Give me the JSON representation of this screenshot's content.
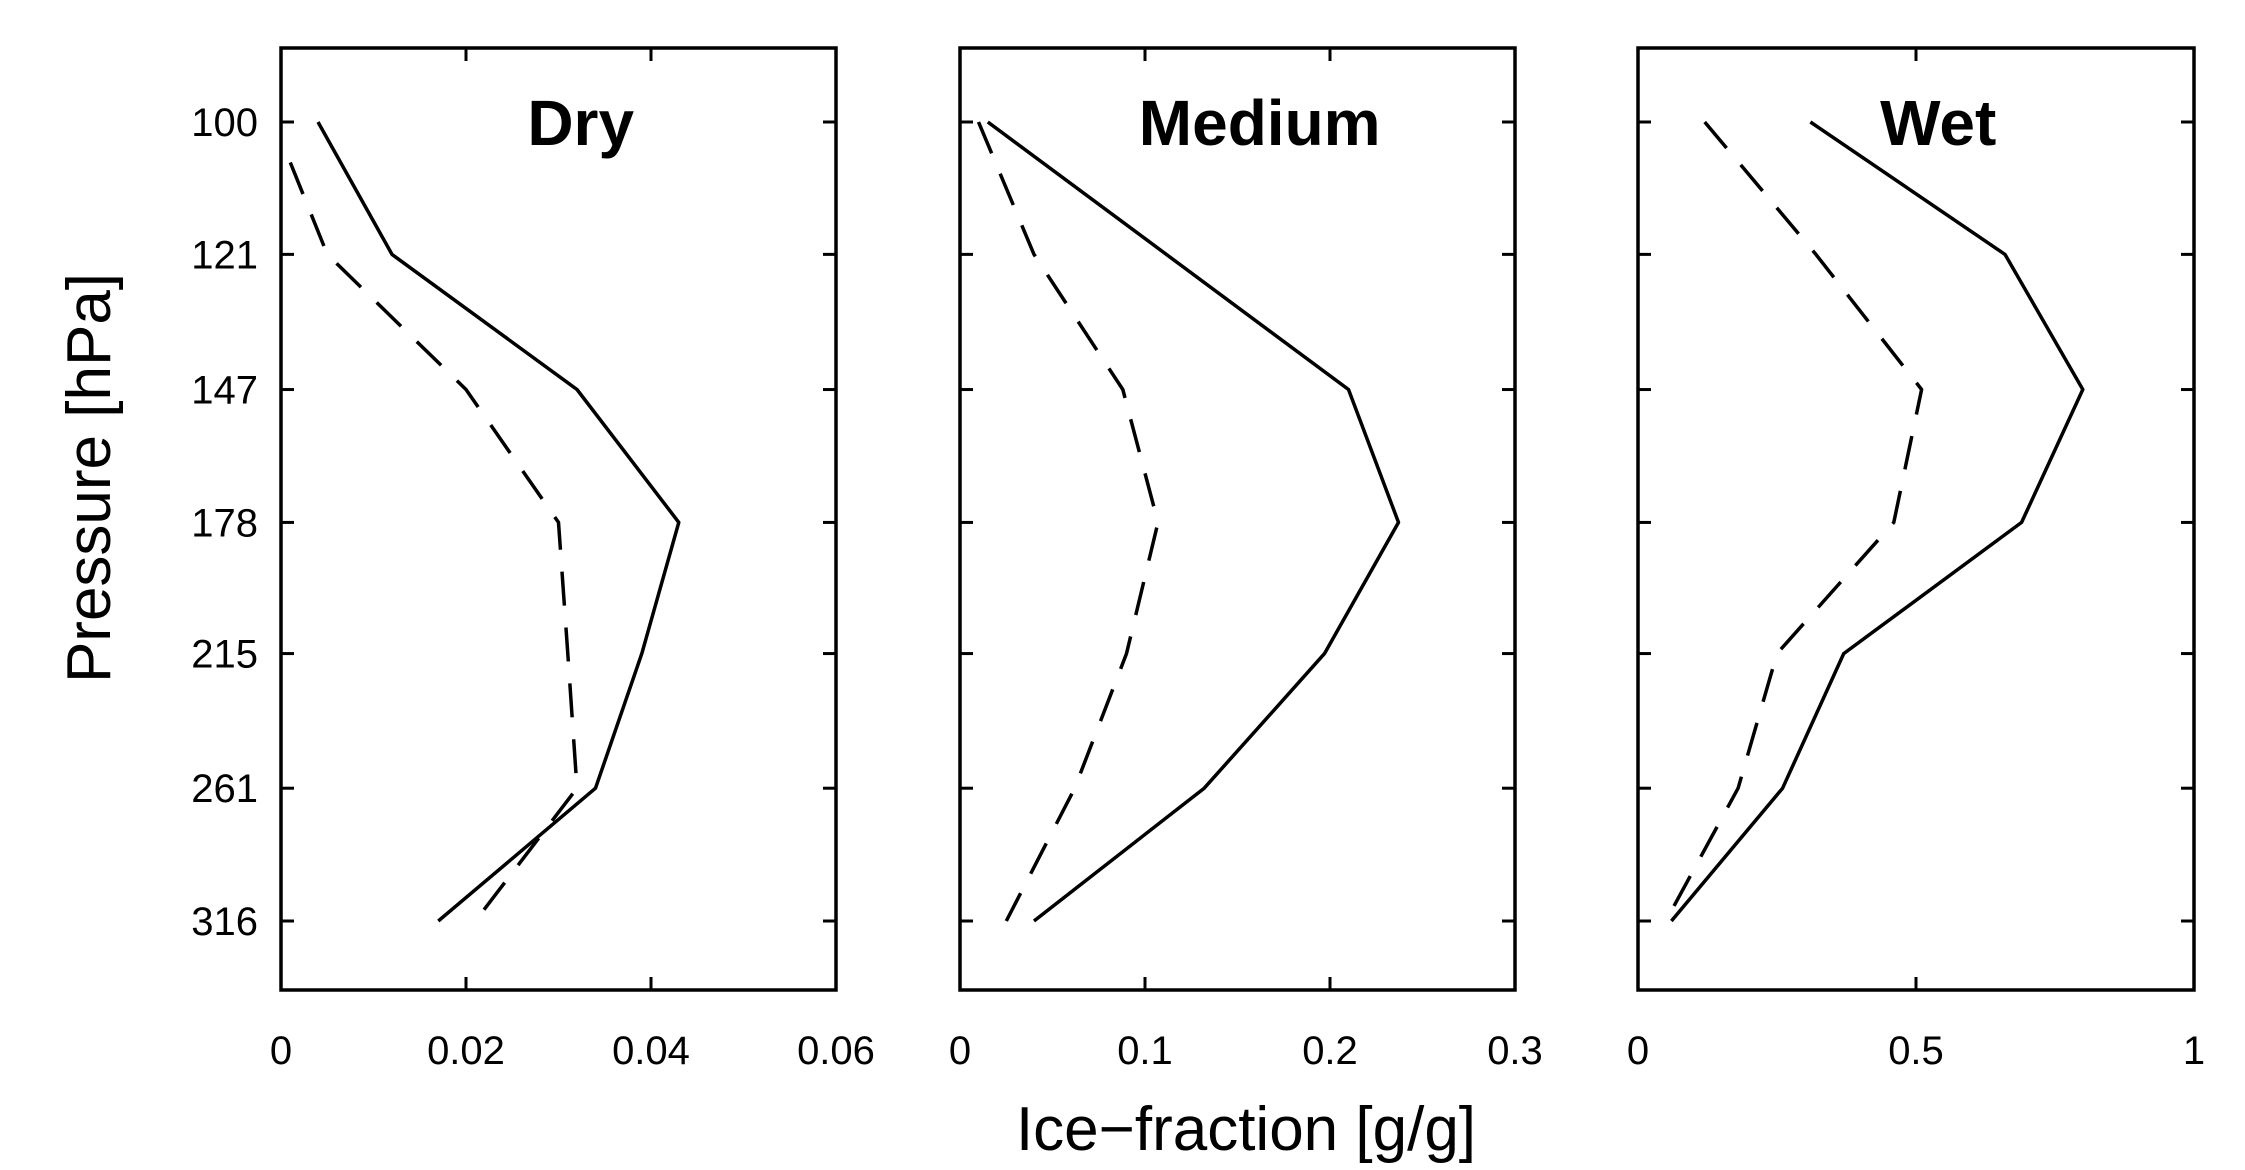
{
  "chart_data": {
    "type": "line",
    "ylabel": "Pressure [hPa]",
    "xlabel": "Ice−fraction [g/g]",
    "y_scale": "log",
    "y_direction": "down",
    "yticks": [
      100,
      121,
      147,
      178,
      215,
      261,
      316
    ],
    "ytick_labels": [
      "100",
      "121",
      "147",
      "178",
      "215",
      "261",
      "316"
    ],
    "ylim": [
      91,
      347
    ],
    "grid": false,
    "legend": "none",
    "panels": [
      {
        "title": "Dry",
        "xlim": [
          0,
          0.06
        ],
        "xticks": [
          0,
          0.02,
          0.04,
          0.06
        ],
        "xtick_labels": [
          "0",
          "0.02",
          "0.04",
          "0.06"
        ],
        "series": [
          {
            "style": "solid",
            "pressure": [
              100,
              121,
              147,
              178,
              215,
              261,
              316
            ],
            "values": [
              0.004,
              0.012,
              0.032,
              0.043,
              0.039,
              0.034,
              0.017
            ]
          },
          {
            "style": "dashed",
            "pressure": [
              106,
              121,
              147,
              178,
              215,
              261,
              316
            ],
            "values": [
              0.001,
              0.005,
              0.02,
              0.03,
              0.031,
              0.032,
              0.021
            ]
          }
        ]
      },
      {
        "title": "Medium",
        "xlim": [
          0,
          0.3
        ],
        "xticks": [
          0,
          0.1,
          0.2,
          0.3
        ],
        "xtick_labels": [
          "0",
          "0.1",
          "0.2",
          "0.3"
        ],
        "series": [
          {
            "style": "solid",
            "pressure": [
              100,
              147,
              178,
              215,
              261,
              316
            ],
            "values": [
              0.015,
              0.21,
              0.237,
              0.197,
              0.132,
              0.04
            ]
          },
          {
            "style": "dashed",
            "pressure": [
              100,
              121,
              147,
              178,
              215,
              261,
              316
            ],
            "values": [
              0.01,
              0.04,
              0.088,
              0.107,
              0.09,
              0.062,
              0.025
            ]
          }
        ]
      },
      {
        "title": "Wet",
        "xlim": [
          0,
          1
        ],
        "xticks": [
          0,
          0.5,
          1
        ],
        "xtick_labels": [
          "0",
          "0.5",
          "1"
        ],
        "series": [
          {
            "style": "solid",
            "pressure": [
              100,
              121,
              147,
              178,
              215,
              261,
              316
            ],
            "values": [
              0.31,
              0.66,
              0.8,
              0.69,
              0.37,
              0.26,
              0.06
            ]
          },
          {
            "style": "dashed",
            "pressure": [
              100,
              121,
              147,
              178,
              215,
              261,
              316
            ],
            "values": [
              0.12,
              0.32,
              0.51,
              0.46,
              0.25,
              0.18,
              0.05
            ]
          }
        ]
      }
    ]
  }
}
